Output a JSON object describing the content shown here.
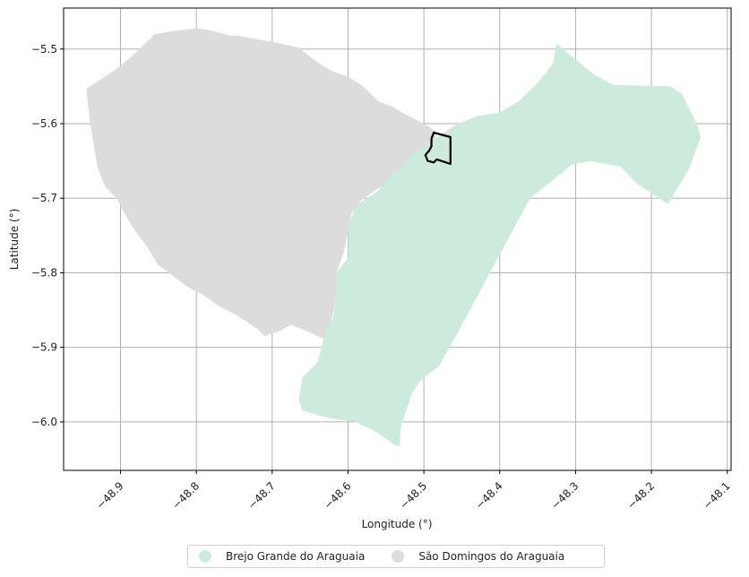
{
  "chart_data": {
    "type": "map",
    "xlabel": "Longitude (°)",
    "ylabel": "Latitude (°)",
    "xlim": [
      -48.975,
      -48.095
    ],
    "ylim": [
      -6.065,
      -5.445
    ],
    "x_ticks": [
      "−48.9",
      "−48.8",
      "−48.7",
      "−48.6",
      "−48.5",
      "−48.4",
      "−48.3",
      "−48.2",
      "−48.1"
    ],
    "x_tick_values": [
      -48.9,
      -48.8,
      -48.7,
      -48.6,
      -48.5,
      -48.4,
      -48.3,
      -48.2,
      -48.1
    ],
    "y_ticks": [
      "−5.5",
      "−5.6",
      "−5.7",
      "−5.8",
      "−5.9",
      "−6.0"
    ],
    "y_tick_values": [
      -5.5,
      -5.6,
      -5.7,
      -5.8,
      -5.9,
      -6.0
    ],
    "grid": true,
    "legend_placement": "bottom-center",
    "regions": [
      {
        "name": "Brejo Grande do Araguaia",
        "color": "#cdebdc",
        "coords": [
          [
            -48.325,
            -5.493
          ],
          [
            -48.275,
            -5.535
          ],
          [
            -48.25,
            -5.548
          ],
          [
            -48.175,
            -5.55
          ],
          [
            -48.16,
            -5.56
          ],
          [
            -48.14,
            -5.6
          ],
          [
            -48.135,
            -5.618
          ],
          [
            -48.15,
            -5.66
          ],
          [
            -48.178,
            -5.708
          ],
          [
            -48.22,
            -5.68
          ],
          [
            -48.24,
            -5.658
          ],
          [
            -48.28,
            -5.65
          ],
          [
            -48.305,
            -5.655
          ],
          [
            -48.36,
            -5.7
          ],
          [
            -48.45,
            -5.87
          ],
          [
            -48.48,
            -5.925
          ],
          [
            -48.5,
            -5.93
          ],
          [
            -48.505,
            -5.945
          ],
          [
            -48.515,
            -5.96
          ],
          [
            -48.52,
            -5.975
          ],
          [
            -48.525,
            -5.99
          ],
          [
            -48.53,
            -6.005
          ],
          [
            -48.532,
            -6.033
          ],
          [
            -48.545,
            -6.025
          ],
          [
            -48.565,
            -6.01
          ],
          [
            -48.59,
            -5.985
          ],
          [
            -48.625,
            -5.985
          ],
          [
            -48.66,
            -5.98
          ],
          [
            -48.665,
            -5.972
          ],
          [
            -48.66,
            -5.94
          ],
          [
            -48.65,
            -5.925
          ],
          [
            -48.63,
            -5.88
          ],
          [
            -48.62,
            -5.86
          ],
          [
            -48.615,
            -5.83
          ],
          [
            -48.615,
            -5.8
          ],
          [
            -48.6,
            -5.78
          ],
          [
            -48.6,
            -5.74
          ],
          [
            -48.58,
            -5.7
          ],
          [
            -48.56,
            -5.68
          ],
          [
            -48.535,
            -5.665
          ],
          [
            -48.51,
            -5.65
          ],
          [
            -48.485,
            -5.632
          ],
          [
            -48.45,
            -5.61
          ],
          [
            -48.42,
            -5.598
          ],
          [
            -48.4,
            -5.585
          ],
          [
            -48.37,
            -5.577
          ],
          [
            -48.35,
            -5.562
          ],
          [
            -48.335,
            -5.545
          ],
          [
            -48.33,
            -5.52
          ]
        ],
        "coords_patch": [
          [
            -48.325,
            -5.493
          ],
          [
            -48.33,
            -5.52
          ],
          [
            -48.35,
            -5.545
          ],
          [
            -48.375,
            -5.57
          ],
          [
            -48.4,
            -5.585
          ],
          [
            -48.43,
            -5.59
          ],
          [
            -48.455,
            -5.6
          ],
          [
            -48.47,
            -5.61
          ],
          [
            -48.5,
            -5.63
          ],
          [
            -48.52,
            -5.645
          ],
          [
            -48.53,
            -5.66
          ],
          [
            -48.545,
            -5.67
          ],
          [
            -48.56,
            -5.69
          ],
          [
            -48.59,
            -5.71
          ],
          [
            -48.6,
            -5.74
          ],
          [
            -48.6,
            -5.78
          ],
          [
            -48.615,
            -5.8
          ],
          [
            -48.615,
            -5.83
          ],
          [
            -48.62,
            -5.86
          ],
          [
            -48.63,
            -5.88
          ],
          [
            -48.64,
            -5.92
          ],
          [
            -48.66,
            -5.94
          ],
          [
            -48.665,
            -5.97
          ],
          [
            -48.66,
            -5.985
          ],
          [
            -48.625,
            -5.995
          ],
          [
            -48.59,
            -6.0
          ],
          [
            -48.56,
            -6.015
          ],
          [
            -48.54,
            -6.03
          ],
          [
            -48.532,
            -6.033
          ],
          [
            -48.53,
            -6.005
          ],
          [
            -48.525,
            -5.99
          ],
          [
            -48.515,
            -5.96
          ],
          [
            -48.505,
            -5.945
          ],
          [
            -48.48,
            -5.925
          ],
          [
            -48.45,
            -5.87
          ],
          [
            -48.36,
            -5.7
          ],
          [
            -48.305,
            -5.655
          ],
          [
            -48.28,
            -5.65
          ],
          [
            -48.24,
            -5.658
          ],
          [
            -48.22,
            -5.68
          ],
          [
            -48.178,
            -5.708
          ],
          [
            -48.15,
            -5.66
          ],
          [
            -48.135,
            -5.618
          ],
          [
            -48.14,
            -5.6
          ],
          [
            -48.16,
            -5.56
          ],
          [
            -48.175,
            -5.55
          ],
          [
            -48.25,
            -5.548
          ],
          [
            -48.275,
            -5.535
          ]
        ]
      },
      {
        "name": "São Domingos do Araguaia",
        "color": "#dcdcdc",
        "coords": [
          [
            -48.945,
            -5.553
          ],
          [
            -48.91,
            -5.53
          ],
          [
            -48.885,
            -5.51
          ],
          [
            -48.855,
            -5.48
          ],
          [
            -48.83,
            -5.476
          ],
          [
            -48.8,
            -5.472
          ],
          [
            -48.78,
            -5.475
          ],
          [
            -48.755,
            -5.482
          ],
          [
            -48.745,
            -5.482
          ],
          [
            -48.725,
            -5.486
          ],
          [
            -48.7,
            -5.49
          ],
          [
            -48.665,
            -5.498
          ],
          [
            -48.64,
            -5.518
          ],
          [
            -48.62,
            -5.53
          ],
          [
            -48.6,
            -5.537
          ],
          [
            -48.58,
            -5.55
          ],
          [
            -48.56,
            -5.57
          ],
          [
            -48.54,
            -5.578
          ],
          [
            -48.52,
            -5.59
          ],
          [
            -48.5,
            -5.6
          ],
          [
            -48.485,
            -5.61
          ],
          [
            -48.48,
            -5.65
          ],
          [
            -48.52,
            -5.665
          ],
          [
            -48.545,
            -5.678
          ],
          [
            -48.565,
            -5.69
          ],
          [
            -48.585,
            -5.705
          ],
          [
            -48.595,
            -5.72
          ],
          [
            -48.6,
            -5.745
          ],
          [
            -48.605,
            -5.77
          ],
          [
            -48.615,
            -5.8
          ],
          [
            -48.615,
            -5.83
          ],
          [
            -48.62,
            -5.855
          ],
          [
            -48.625,
            -5.875
          ],
          [
            -48.63,
            -5.89
          ],
          [
            -48.65,
            -5.88
          ],
          [
            -48.675,
            -5.87
          ],
          [
            -48.69,
            -5.878
          ],
          [
            -48.71,
            -5.885
          ],
          [
            -48.72,
            -5.875
          ],
          [
            -48.735,
            -5.865
          ],
          [
            -48.75,
            -5.855
          ],
          [
            -48.77,
            -5.845
          ],
          [
            -48.79,
            -5.83
          ],
          [
            -48.81,
            -5.82
          ],
          [
            -48.83,
            -5.805
          ],
          [
            -48.85,
            -5.79
          ],
          [
            -48.865,
            -5.765
          ],
          [
            -48.88,
            -5.745
          ],
          [
            -48.895,
            -5.72
          ],
          [
            -48.905,
            -5.7
          ],
          [
            -48.92,
            -5.685
          ],
          [
            -48.93,
            -5.66
          ],
          [
            -48.935,
            -5.63
          ],
          [
            -48.94,
            -5.6
          ]
        ]
      }
    ],
    "highlight": {
      "name": "outline",
      "color": "#000000",
      "coords": [
        [
          -48.487,
          -5.612
        ],
        [
          -48.465,
          -5.618
        ],
        [
          -48.465,
          -5.654
        ],
        [
          -48.483,
          -5.648
        ],
        [
          -48.487,
          -5.652
        ],
        [
          -48.495,
          -5.65
        ],
        [
          -48.498,
          -5.642
        ],
        [
          -48.493,
          -5.636
        ],
        [
          -48.49,
          -5.63
        ],
        [
          -48.49,
          -5.62
        ]
      ]
    }
  },
  "legend": {
    "items": [
      {
        "label": "Brejo Grande do Araguaia",
        "color": "#cdebdc"
      },
      {
        "label": "São Domingos do Araguaia",
        "color": "#dcdcdc"
      }
    ]
  }
}
